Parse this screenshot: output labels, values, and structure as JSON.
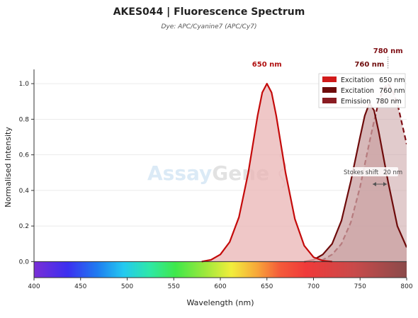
{
  "title": "AKES044  |  Fluorescence Spectrum",
  "subtitle": "Dye: APC/Cyanine7 (APC/Cy7)",
  "watermark": {
    "text_a": "Assay",
    "text_b": "Gene"
  },
  "colors": {
    "excitation_650": "#c40a0a",
    "excitation_760": "#6e0b0b",
    "emission_780": "#7e0e14",
    "fill_650": "#e9b4b4",
    "fill_760": "#c9a0a2"
  },
  "peak_labels": [
    {
      "text": "650 nm",
      "x": 650,
      "color": "#b01010"
    },
    {
      "text": "760 nm",
      "x": 760,
      "color": "#6e0b0b"
    },
    {
      "text": "780 nm",
      "x": 780,
      "color": "#7e0e14"
    }
  ],
  "stokes_shift": {
    "label": "Stokes shift",
    "value": "20 nm",
    "from": 760,
    "to": 780
  },
  "chart_data": {
    "type": "line",
    "xlabel": "Wavelength (nm)",
    "ylabel": "Normalised Intensity",
    "xlim": [
      400,
      800
    ],
    "ylim": [
      -0.09,
      1.08
    ],
    "xticks": [
      400,
      450,
      500,
      550,
      600,
      650,
      700,
      750,
      800
    ],
    "yticks": [
      0.0,
      0.2,
      0.4,
      0.6,
      0.8,
      1.0
    ],
    "grid": true,
    "legend_position": "top-right",
    "series": [
      {
        "name": "Excitation",
        "wavelength": "650 nm",
        "style": "solid",
        "x": [
          580,
          590,
          600,
          610,
          620,
          630,
          640,
          645,
          650,
          655,
          660,
          670,
          680,
          690,
          700,
          710,
          720
        ],
        "y": [
          0.0,
          0.01,
          0.04,
          0.11,
          0.25,
          0.5,
          0.82,
          0.95,
          1.0,
          0.95,
          0.82,
          0.5,
          0.24,
          0.09,
          0.025,
          0.005,
          0.0
        ]
      },
      {
        "name": "Excitation",
        "wavelength": "760 nm",
        "style": "solid",
        "x": [
          690,
          700,
          710,
          720,
          730,
          740,
          750,
          755,
          760,
          765,
          770,
          780,
          790,
          800
        ],
        "y": [
          0.0,
          0.01,
          0.04,
          0.1,
          0.23,
          0.45,
          0.7,
          0.82,
          0.89,
          0.85,
          0.73,
          0.45,
          0.2,
          0.08
        ]
      },
      {
        "name": "Emission",
        "wavelength": "780 nm",
        "style": "dashed",
        "x": [
          700,
          710,
          720,
          730,
          740,
          750,
          760,
          765,
          770,
          775,
          780,
          785,
          790,
          800
        ],
        "y": [
          0.0,
          0.01,
          0.04,
          0.1,
          0.22,
          0.42,
          0.67,
          0.79,
          0.9,
          0.97,
          1.0,
          0.96,
          0.89,
          0.66
        ]
      }
    ]
  }
}
